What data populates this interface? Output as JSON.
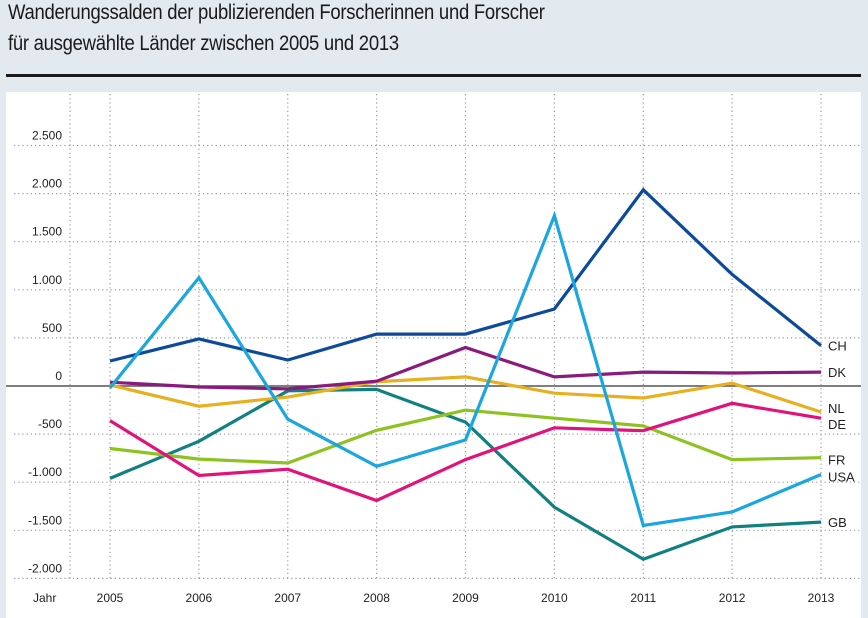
{
  "header": {
    "title_line1": "Wanderungssalden der publizierenden Forscherinnen und Forscher",
    "title_line2": "für ausgewählte Länder zwischen 2005 und 2013"
  },
  "chart_data": {
    "type": "line",
    "title": "Wanderungssalden der publizierenden Forscherinnen und Forscher für ausgewählte Länder zwischen 2005 und 2013",
    "xlabel": "Jahr",
    "ylabel": "",
    "x": [
      2005,
      2006,
      2007,
      2008,
      2009,
      2010,
      2011,
      2012,
      2013
    ],
    "x_tick_labels": [
      "2005",
      "2006",
      "2007",
      "2008",
      "2009",
      "2010",
      "2011",
      "2012",
      "2013"
    ],
    "ylim": [
      -2000,
      2500
    ],
    "y_ticks": [
      2500,
      2000,
      1500,
      1000,
      500,
      0,
      -500,
      -1000,
      -1500,
      -2000
    ],
    "y_tick_labels": [
      "2.500",
      "2.000",
      "1.500",
      "1.000",
      "500",
      "0",
      "-500",
      "-1.000",
      "-1.500",
      "-2.000"
    ],
    "grid": true,
    "legend": "right-end-labels",
    "series": [
      {
        "name": "CH",
        "color": "#0d4a9a",
        "values": [
          260,
          490,
          270,
          540,
          540,
          800,
          2040,
          1160,
          420
        ]
      },
      {
        "name": "DK",
        "color": "#8a1a7e",
        "values": [
          40,
          -10,
          -30,
          50,
          400,
          95,
          145,
          135,
          145
        ]
      },
      {
        "name": "NL",
        "color": "#e6b01e",
        "values": [
          10,
          -210,
          -115,
          45,
          95,
          -75,
          -125,
          30,
          -270
        ]
      },
      {
        "name": "DE",
        "color": "#e2127a",
        "values": [
          -360,
          -930,
          -865,
          -1190,
          -765,
          -435,
          -465,
          -180,
          -335
        ]
      },
      {
        "name": "FR",
        "color": "#8dc21f",
        "values": [
          -650,
          -760,
          -800,
          -460,
          -250,
          -335,
          -415,
          -765,
          -745
        ]
      },
      {
        "name": "USA",
        "color": "#1aa6de",
        "values": [
          -20,
          1125,
          -345,
          -835,
          -560,
          1770,
          -1450,
          -1310,
          -920
        ]
      },
      {
        "name": "GB",
        "color": "#118080",
        "values": [
          -960,
          -575,
          -50,
          -35,
          -375,
          -1260,
          -1800,
          -1465,
          -1415
        ]
      }
    ]
  }
}
